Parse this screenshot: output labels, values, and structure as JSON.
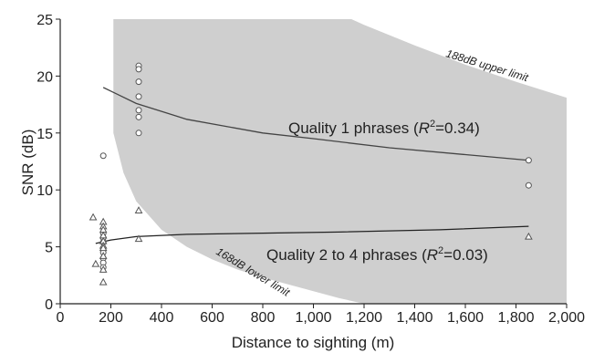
{
  "chart_data": {
    "type": "scatter",
    "xlabel": "Distance to sighting (m)",
    "ylabel": "SNR (dB)",
    "xlim": [
      0,
      2000
    ],
    "ylim": [
      0,
      25
    ],
    "x_ticks": [
      "0",
      "200",
      "400",
      "600",
      "800",
      "1,000",
      "1,200",
      "1,400",
      "1,600",
      "1,800",
      "2,000"
    ],
    "y_ticks": [
      "0",
      "5",
      "10",
      "15",
      "20",
      "25"
    ],
    "grid": false,
    "band": {
      "color": "#cfcfcf",
      "upper_label": "188dB upper limit",
      "lower_label": "168dB lower limit",
      "upper": [
        [
          0,
          40
        ],
        [
          200,
          35
        ],
        [
          400,
          31.5
        ],
        [
          600,
          29.5
        ],
        [
          800,
          28
        ],
        [
          1000,
          26.5
        ],
        [
          1200,
          24.5
        ],
        [
          1400,
          22.7
        ],
        [
          1600,
          21
        ],
        [
          1800,
          19.5
        ],
        [
          2000,
          18.1
        ]
      ],
      "lower": [
        [
          210,
          15
        ],
        [
          250,
          11.5
        ],
        [
          300,
          9
        ],
        [
          400,
          6.5
        ],
        [
          500,
          5
        ],
        [
          600,
          3.9
        ],
        [
          700,
          3
        ],
        [
          800,
          2.3
        ],
        [
          900,
          1.7
        ],
        [
          1000,
          1.1
        ],
        [
          1100,
          0.5
        ],
        [
          1200,
          0
        ]
      ]
    },
    "series": [
      {
        "marker": "circle",
        "color": "#555555",
        "points": [
          [
            170,
            13
          ],
          [
            310,
            20.9
          ],
          [
            310,
            20.6
          ],
          [
            310,
            19.5
          ],
          [
            310,
            18.2
          ],
          [
            310,
            17
          ],
          [
            310,
            16.4
          ],
          [
            310,
            15
          ],
          [
            1850,
            12.6
          ],
          [
            1850,
            10.4
          ],
          [
            170,
            6.2
          ],
          [
            170,
            5.8
          ],
          [
            170,
            5.4
          ],
          [
            170,
            4.5
          ],
          [
            170,
            4
          ],
          [
            170,
            3.6
          ],
          [
            170,
            3.2
          ]
        ]
      },
      {
        "marker": "triangle",
        "color": "#555555",
        "points": [
          [
            130,
            7.6
          ],
          [
            170,
            7.2
          ],
          [
            170,
            6.8
          ],
          [
            170,
            6.5
          ],
          [
            170,
            6
          ],
          [
            170,
            5.5
          ],
          [
            170,
            5.1
          ],
          [
            170,
            4.9
          ],
          [
            170,
            4.2
          ],
          [
            140,
            3.5
          ],
          [
            170,
            3
          ],
          [
            170,
            1.9
          ],
          [
            310,
            8.2
          ],
          [
            310,
            5.7
          ],
          [
            1850,
            5.9
          ]
        ]
      }
    ],
    "fits": [
      {
        "label_text": "Quality 1 phrases (",
        "label_r": "R",
        "label_sup": "2",
        "label_value": "=0.34)",
        "color": "#444444",
        "points": [
          [
            170,
            19
          ],
          [
            300,
            17.6
          ],
          [
            500,
            16.2
          ],
          [
            800,
            15
          ],
          [
            1000,
            14.5
          ],
          [
            1300,
            13.7
          ],
          [
            1600,
            13.1
          ],
          [
            1850,
            12.6
          ]
        ]
      },
      {
        "label_text": "Quality 2 to 4 phrases (",
        "label_r": "R",
        "label_sup": "2",
        "label_value": "=0.03)",
        "color": "#222222",
        "points": [
          [
            140,
            5.3
          ],
          [
            200,
            5.6
          ],
          [
            300,
            5.9
          ],
          [
            500,
            6.1
          ],
          [
            800,
            6.2
          ],
          [
            1100,
            6.3
          ],
          [
            1500,
            6.5
          ],
          [
            1850,
            6.8
          ]
        ]
      }
    ]
  }
}
